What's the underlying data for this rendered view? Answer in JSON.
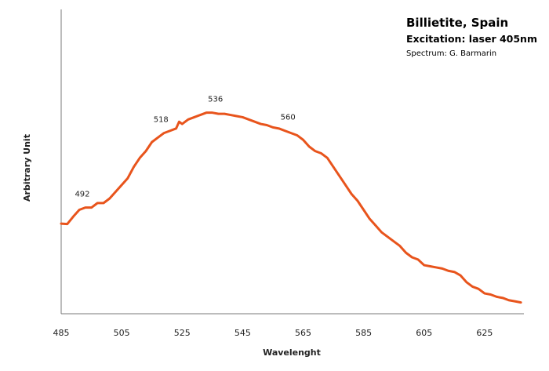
{
  "chart_data": {
    "type": "line",
    "title_lines": [
      "Billietite, Spain",
      "Excitation: laser 405nm",
      "Spectrum: G. Barmarin"
    ],
    "xlabel": "Wavelenght",
    "ylabel": "Arbitrary Unit",
    "xlim": [
      485,
      638
    ],
    "ylim": [
      0,
      1
    ],
    "x_ticks": [
      485,
      505,
      525,
      545,
      565,
      585,
      605,
      625
    ],
    "grid": false,
    "legend": "none",
    "series_color": "#E8541C",
    "series": [
      {
        "x": [
          485,
          487,
          489,
          491,
          493,
          495,
          497,
          499,
          501,
          503,
          505,
          507,
          509,
          511,
          513,
          515,
          517,
          519,
          521,
          523,
          524,
          525,
          526,
          527,
          529,
          531,
          533,
          535,
          537,
          539,
          541,
          543,
          545,
          547,
          549,
          551,
          553,
          555,
          557,
          559,
          561,
          563,
          565,
          567,
          569,
          571,
          573,
          575,
          577,
          579,
          581,
          583,
          585,
          587,
          589,
          591,
          593,
          595,
          597,
          599,
          601,
          603,
          605,
          607,
          609,
          611,
          613,
          615,
          617,
          619,
          621,
          623,
          625,
          627,
          629,
          631,
          633,
          635,
          637
        ],
        "y": [
          0.399,
          0.397,
          0.43,
          0.46,
          0.47,
          0.47,
          0.49,
          0.49,
          0.51,
          0.54,
          0.57,
          0.6,
          0.65,
          0.69,
          0.72,
          0.76,
          0.78,
          0.8,
          0.81,
          0.82,
          0.85,
          0.84,
          0.85,
          0.86,
          0.87,
          0.88,
          0.89,
          0.89,
          0.885,
          0.885,
          0.88,
          0.875,
          0.87,
          0.86,
          0.85,
          0.84,
          0.835,
          0.825,
          0.82,
          0.81,
          0.8,
          0.79,
          0.77,
          0.74,
          0.72,
          0.71,
          0.69,
          0.65,
          0.61,
          0.57,
          0.53,
          0.5,
          0.46,
          0.42,
          0.39,
          0.36,
          0.34,
          0.32,
          0.3,
          0.27,
          0.25,
          0.24,
          0.215,
          0.21,
          0.205,
          0.2,
          0.19,
          0.185,
          0.17,
          0.14,
          0.12,
          0.11,
          0.09,
          0.085,
          0.075,
          0.07,
          0.06,
          0.055,
          0.05
        ]
      }
    ],
    "annotations": [
      {
        "text": "492",
        "x": 492,
        "y": 0.47
      },
      {
        "text": "518",
        "x": 518,
        "y": 0.8
      },
      {
        "text": "536",
        "x": 536,
        "y": 0.89
      },
      {
        "text": "560",
        "x": 560,
        "y": 0.81
      }
    ]
  }
}
